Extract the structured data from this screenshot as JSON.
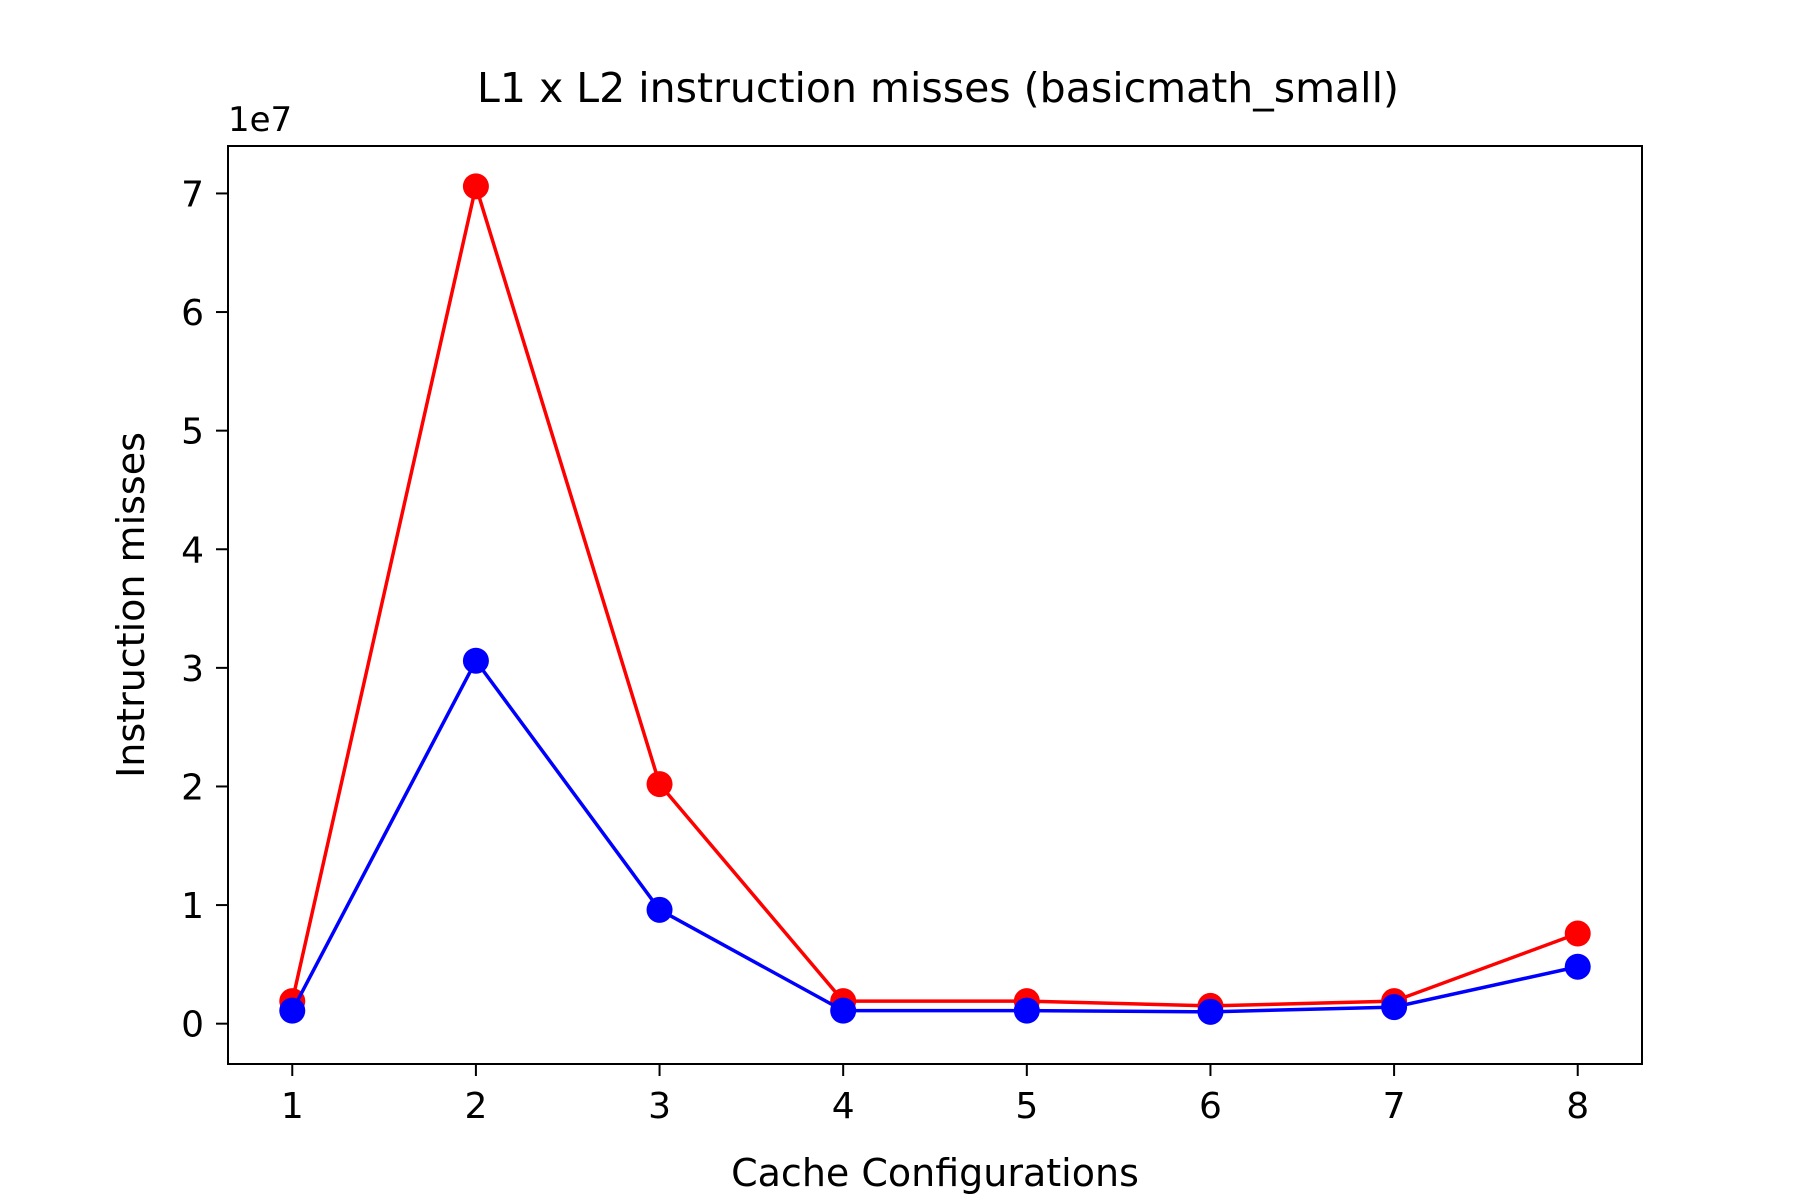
{
  "chart_data": {
    "type": "line",
    "title": "L1 x L2 instruction misses (basicmath_small)",
    "xlabel": "Cache Configurations",
    "ylabel": "Instruction misses",
    "y_offset_label": "1e7",
    "y_scale_multiplier": 10000000,
    "x": [
      1,
      2,
      3,
      4,
      5,
      6,
      7,
      8
    ],
    "xticks": [
      "1",
      "2",
      "3",
      "4",
      "5",
      "6",
      "7",
      "8"
    ],
    "yticks": [
      "0",
      "1",
      "2",
      "3",
      "4",
      "5",
      "6",
      "7"
    ],
    "ylim": [
      -3400000,
      74000000
    ],
    "xlim": [
      0.65,
      8.35
    ],
    "grid": false,
    "legend": false,
    "series": [
      {
        "color": "#ff0000",
        "values": [
          1900000,
          70600000,
          20200000,
          1900000,
          1900000,
          1500000,
          1900000,
          7600000
        ]
      },
      {
        "color": "#0000ff",
        "values": [
          1100000,
          30600000,
          9600000,
          1100000,
          1100000,
          1000000,
          1400000,
          4800000
        ]
      }
    ]
  }
}
